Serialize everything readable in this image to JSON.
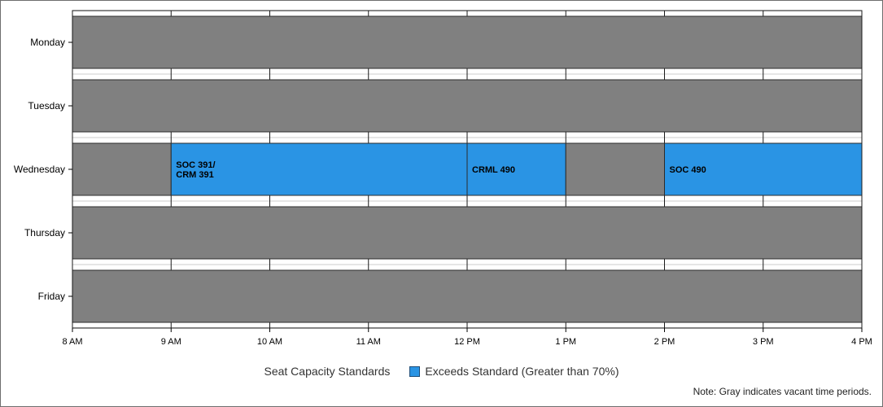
{
  "chart_data": {
    "type": "gantt",
    "days": [
      "Monday",
      "Tuesday",
      "Wednesday",
      "Thursday",
      "Friday"
    ],
    "x_ticks": [
      "8 AM",
      "9 AM",
      "10 AM",
      "11 AM",
      "12 PM",
      "1 PM",
      "2 PM",
      "3 PM",
      "4 PM"
    ],
    "x_range_hours": [
      8,
      16
    ],
    "grid": true,
    "bars": [
      {
        "day": "Monday",
        "start": 8,
        "end": 16,
        "status": "vacant",
        "label": ""
      },
      {
        "day": "Tuesday",
        "start": 8,
        "end": 16,
        "status": "vacant",
        "label": ""
      },
      {
        "day": "Wednesday",
        "start": 8,
        "end": 9,
        "status": "vacant",
        "label": ""
      },
      {
        "day": "Wednesday",
        "start": 9,
        "end": 12,
        "status": "exceeds",
        "label": "SOC 391/\nCRM 391"
      },
      {
        "day": "Wednesday",
        "start": 12,
        "end": 13,
        "status": "exceeds",
        "label": "CRML 490"
      },
      {
        "day": "Wednesday",
        "start": 13,
        "end": 14,
        "status": "vacant",
        "label": ""
      },
      {
        "day": "Wednesday",
        "start": 14,
        "end": 16,
        "status": "exceeds",
        "label": "SOC 490"
      },
      {
        "day": "Thursday",
        "start": 8,
        "end": 16,
        "status": "vacant",
        "label": ""
      },
      {
        "day": "Friday",
        "start": 8,
        "end": 16,
        "status": "vacant",
        "label": ""
      }
    ],
    "legend": {
      "title": "Seat Capacity Standards",
      "items": [
        {
          "name": "Exceeds Standard (Greater than 70%)",
          "color": "#2a94e4"
        }
      ],
      "placement": "bottom"
    },
    "note": "Note: Gray indicates vacant time periods.",
    "colors": {
      "vacant": "#808080",
      "exceeds": "#2a94e4"
    }
  }
}
